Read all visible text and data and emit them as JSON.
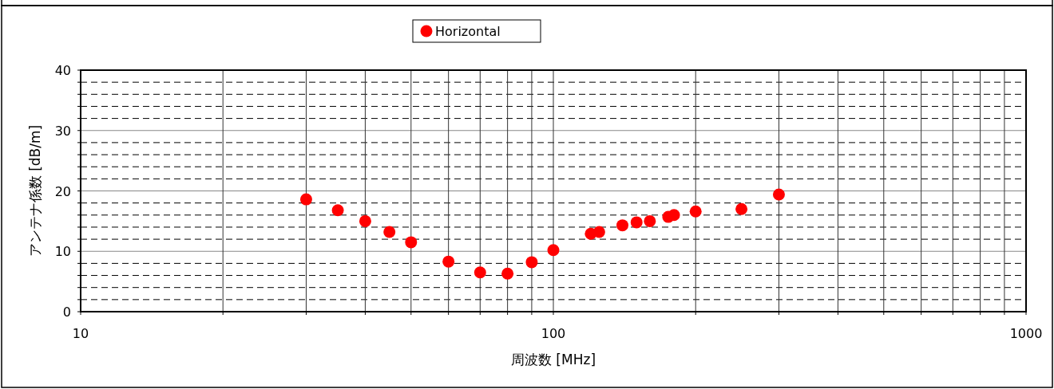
{
  "chart_data": {
    "type": "scatter",
    "xlabel": "周波数 [MHz]",
    "ylabel": "アンテナ係数 [dB/m]",
    "series": [
      {
        "name": "Horizontal",
        "color": "#ff0000",
        "x": [
          30,
          35,
          40,
          45,
          50,
          60,
          70,
          80,
          90,
          100,
          120,
          125,
          140,
          150,
          160,
          175,
          180,
          200,
          250,
          300
        ],
        "values": [
          18.6,
          16.8,
          15.0,
          13.2,
          11.5,
          8.3,
          6.5,
          6.3,
          8.2,
          10.2,
          12.9,
          13.2,
          14.3,
          14.8,
          15.0,
          15.7,
          16.0,
          16.6,
          17.0,
          19.4
        ]
      }
    ],
    "log": "x",
    "marker": "circle",
    "legend": "top",
    "grid": true,
    "xlim": [
      10,
      1000
    ],
    "ylim": [
      0,
      40
    ],
    "xticks": [
      10,
      {
        "value": 20,
        "label": null
      },
      {
        "value": 30,
        "label": null
      },
      {
        "value": 40,
        "label": null
      },
      {
        "value": 50,
        "label": null
      },
      {
        "value": 60,
        "label": null
      },
      {
        "value": 70,
        "label": null
      },
      {
        "value": 80,
        "label": null
      },
      {
        "value": 90,
        "label": null
      },
      100,
      {
        "value": 200,
        "label": null
      },
      {
        "value": 300,
        "label": null
      },
      {
        "value": 400,
        "label": null
      },
      {
        "value": 500,
        "label": null
      },
      {
        "value": 600,
        "label": null
      },
      {
        "value": 700,
        "label": null
      },
      {
        "value": 800,
        "label": null
      },
      {
        "value": 900,
        "label": null
      },
      1000
    ],
    "yticks": [
      0,
      {
        "value": 2,
        "label": null
      },
      {
        "value": 4,
        "label": null
      },
      {
        "value": 6,
        "label": null
      },
      {
        "value": 8,
        "label": null
      },
      10,
      {
        "value": 12,
        "label": null
      },
      {
        "value": 14,
        "label": null
      },
      {
        "value": 16,
        "label": null
      },
      {
        "value": 18,
        "label": null
      },
      20,
      {
        "value": 22,
        "label": null
      },
      {
        "value": 24,
        "label": null
      },
      {
        "value": 26,
        "label": null
      },
      {
        "value": 28,
        "label": null
      },
      30,
      {
        "value": 32,
        "label": null
      },
      {
        "value": 34,
        "label": null
      },
      {
        "value": 36,
        "label": null
      },
      {
        "value": 38,
        "label": null
      },
      40
    ]
  }
}
